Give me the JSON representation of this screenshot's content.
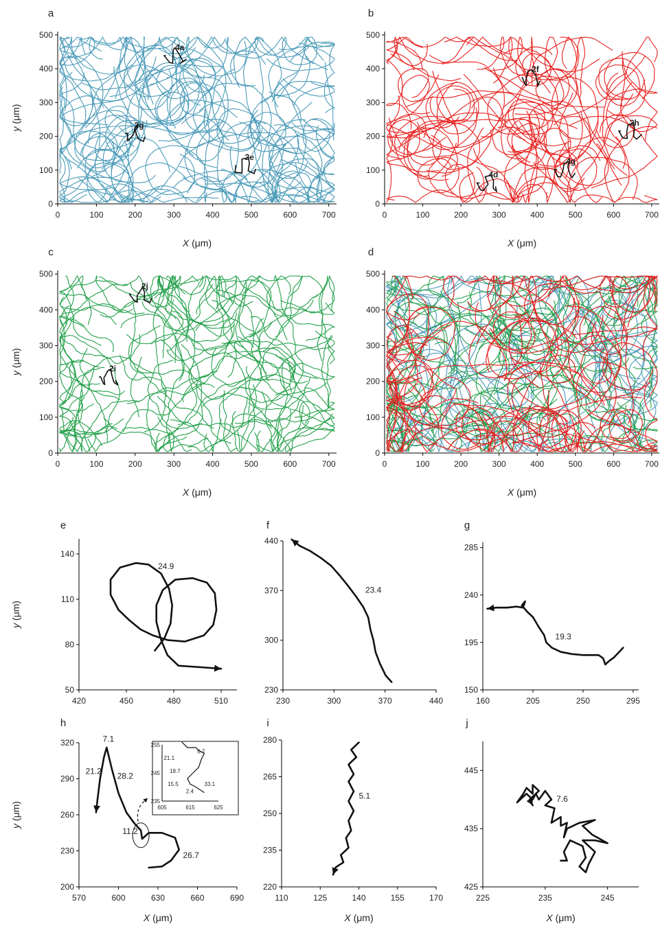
{
  "chart_data": [
    {
      "id": "a",
      "type": "line",
      "panel_label": "a",
      "xlim": [
        0,
        720
      ],
      "ylim": [
        0,
        510
      ],
      "xticks": [
        0,
        100,
        200,
        300,
        400,
        500,
        600,
        700
      ],
      "yticks": [
        0,
        100,
        200,
        300,
        400,
        500
      ],
      "xlabel": "X (μm)",
      "ylabel": "y (μm)",
      "color": "#4a9ab8",
      "highlight_color": "#111111",
      "tracks_note": "dense cell migration trajectories (blue)",
      "annotations": [
        {
          "text": "4a",
          "x": 315,
          "y": 455
        },
        {
          "text": "2g",
          "x": 210,
          "y": 225
        },
        {
          "text": "2e",
          "x": 495,
          "y": 130
        }
      ]
    },
    {
      "id": "b",
      "type": "line",
      "panel_label": "b",
      "xlim": [
        0,
        720
      ],
      "ylim": [
        0,
        510
      ],
      "xticks": [
        0,
        100,
        200,
        300,
        400,
        500,
        600,
        700
      ],
      "yticks": [
        0,
        100,
        200,
        300,
        400,
        500
      ],
      "xlabel": "X (μm)",
      "ylabel": "",
      "color": "#e8201e",
      "highlight_color": "#111111",
      "tracks_note": "cell migration trajectories (red)",
      "annotations": [
        {
          "text": "2f",
          "x": 395,
          "y": 390
        },
        {
          "text": "2h",
          "x": 655,
          "y": 232
        },
        {
          "text": "4d",
          "x": 285,
          "y": 78
        },
        {
          "text": "4g",
          "x": 488,
          "y": 118
        }
      ]
    },
    {
      "id": "c",
      "type": "line",
      "panel_label": "c",
      "xlim": [
        0,
        720
      ],
      "ylim": [
        0,
        510
      ],
      "xticks": [
        0,
        100,
        200,
        300,
        400,
        500,
        600,
        700
      ],
      "yticks": [
        0,
        100,
        200,
        300,
        400,
        500
      ],
      "xlabel": "X (μm)",
      "ylabel": "y (μm)",
      "color": "#23a04a",
      "highlight_color": "#111111",
      "tracks_note": "cell migration trajectories (green)",
      "annotations": [
        {
          "text": "2j",
          "x": 225,
          "y": 458
        },
        {
          "text": "2i",
          "x": 142,
          "y": 228
        }
      ]
    },
    {
      "id": "d",
      "type": "line",
      "panel_label": "d",
      "xlim": [
        0,
        720
      ],
      "ylim": [
        0,
        510
      ],
      "xticks": [
        0,
        100,
        200,
        300,
        400,
        500,
        600,
        700
      ],
      "yticks": [
        0,
        100,
        200,
        300,
        400,
        500
      ],
      "xlabel": "X (μm)",
      "ylabel": "",
      "colors": [
        "#4a9ab8",
        "#23a04a",
        "#e8201e"
      ],
      "tracks_note": "overlay of a, b, c",
      "annotations": []
    },
    {
      "id": "e",
      "type": "line",
      "panel_label": "e",
      "xlim": [
        420,
        520
      ],
      "ylim": [
        50,
        150
      ],
      "xticks": [
        420,
        450,
        480,
        510
      ],
      "yticks": [
        50,
        80,
        110,
        140
      ],
      "xlabel": "",
      "ylabel": "y (μm)",
      "label": "24.9",
      "label_pos": [
        470,
        130
      ],
      "path": [
        [
          468,
          76
        ],
        [
          474,
          84
        ],
        [
          478,
          94
        ],
        [
          479,
          106
        ],
        [
          477,
          117
        ],
        [
          472,
          127
        ],
        [
          464,
          133
        ],
        [
          456,
          134
        ],
        [
          446,
          131
        ],
        [
          440,
          123
        ],
        [
          440,
          113
        ],
        [
          445,
          103
        ],
        [
          452,
          96
        ],
        [
          459,
          90
        ],
        [
          467,
          86
        ],
        [
          476,
          83
        ],
        [
          487,
          82
        ],
        [
          499,
          86
        ],
        [
          505,
          93
        ],
        [
          507,
          103
        ],
        [
          506,
          114
        ],
        [
          501,
          121
        ],
        [
          492,
          124
        ],
        [
          481,
          123
        ],
        [
          473,
          116
        ],
        [
          469,
          106
        ],
        [
          469,
          95
        ],
        [
          472,
          83
        ],
        [
          476,
          73
        ],
        [
          483,
          66
        ],
        [
          497,
          65
        ],
        [
          510,
          64
        ]
      ],
      "arrow": true
    },
    {
      "id": "f",
      "type": "line",
      "panel_label": "f",
      "xlim": [
        230,
        440
      ],
      "ylim": [
        230,
        440
      ],
      "xticks": [
        230,
        300,
        370,
        440
      ],
      "yticks": [
        230,
        300,
        370,
        440
      ],
      "xlabel": "",
      "ylabel": "",
      "label": "23.4",
      "label_pos": [
        343,
        367
      ],
      "path": [
        [
          379,
          241
        ],
        [
          371,
          250
        ],
        [
          363,
          267
        ],
        [
          357,
          283
        ],
        [
          354,
          300
        ],
        [
          350,
          315
        ],
        [
          347,
          332
        ],
        [
          340,
          347
        ],
        [
          330,
          362
        ],
        [
          319,
          377
        ],
        [
          308,
          391
        ],
        [
          296,
          405
        ],
        [
          282,
          416
        ],
        [
          267,
          426
        ],
        [
          253,
          433
        ],
        [
          242,
          442
        ]
      ],
      "arrow": true
    },
    {
      "id": "g",
      "type": "line",
      "panel_label": "g",
      "xlim": [
        160,
        300
      ],
      "ylim": [
        150,
        290
      ],
      "xticks": [
        160,
        205,
        250,
        295
      ],
      "yticks": [
        150,
        195,
        240,
        285
      ],
      "xlabel": "",
      "ylabel": "",
      "label": "19.3",
      "label_pos": [
        225,
        198
      ],
      "path": [
        [
          286,
          190
        ],
        [
          278,
          181
        ],
        [
          273,
          177
        ],
        [
          270,
          174
        ],
        [
          268,
          180
        ],
        [
          264,
          183
        ],
        [
          258,
          183
        ],
        [
          250,
          183
        ],
        [
          240,
          184
        ],
        [
          230,
          186
        ],
        [
          222,
          190
        ],
        [
          217,
          195
        ],
        [
          215,
          202
        ],
        [
          210,
          210
        ],
        [
          205,
          219
        ],
        [
          200,
          224
        ],
        [
          195,
          230
        ],
        [
          198,
          234
        ],
        [
          196,
          228
        ],
        [
          190,
          229
        ],
        [
          182,
          228
        ],
        [
          172,
          228
        ],
        [
          164,
          227
        ]
      ],
      "arrow": true
    },
    {
      "id": "h",
      "type": "line",
      "panel_label": "h",
      "xlim": [
        570,
        690
      ],
      "ylim": [
        200,
        320
      ],
      "xticks": [
        570,
        600,
        630,
        660,
        690
      ],
      "yticks": [
        200,
        230,
        260,
        290,
        320
      ],
      "xlabel": "X (μm)",
      "ylabel": "y (μm)",
      "labels": [
        {
          "text": "7.1",
          "x": 588,
          "y": 321
        },
        {
          "text": "21.2",
          "x": 575,
          "y": 294
        },
        {
          "text": "28.2",
          "x": 599,
          "y": 290
        },
        {
          "text": "11.2",
          "x": 603,
          "y": 244
        },
        {
          "text": "26.7",
          "x": 649,
          "y": 224
        }
      ],
      "path": [
        [
          623,
          216
        ],
        [
          633,
          217
        ],
        [
          640,
          222
        ],
        [
          646,
          231
        ],
        [
          643,
          241
        ],
        [
          633,
          245
        ],
        [
          623,
          245
        ],
        [
          618,
          240
        ],
        [
          617,
          247
        ],
        [
          612,
          253
        ],
        [
          606,
          262
        ],
        [
          600,
          278
        ],
        [
          595,
          298
        ],
        [
          591,
          316
        ],
        [
          589,
          308
        ],
        [
          586,
          290
        ],
        [
          584,
          272
        ],
        [
          583,
          262
        ]
      ],
      "arrow": true,
      "inset": {
        "xlim": [
          605,
          625
        ],
        "ylim": [
          235,
          255
        ],
        "xticks": [
          605,
          615,
          625
        ],
        "yticks": [
          235,
          245,
          255
        ],
        "labels": [
          {
            "text": "6.7",
            "x": 617.5,
            "y": 252
          },
          {
            "text": "21.1",
            "x": 605.6,
            "y": 249.6
          },
          {
            "text": "18.7",
            "x": 607.7,
            "y": 245
          },
          {
            "text": "15.5",
            "x": 607,
            "y": 240.4
          },
          {
            "text": "2.4",
            "x": 613.5,
            "y": 237.8
          },
          {
            "text": "33.1",
            "x": 620,
            "y": 240.4
          }
        ]
      }
    },
    {
      "id": "i",
      "type": "line",
      "panel_label": "i",
      "xlim": [
        110,
        170
      ],
      "ylim": [
        220,
        280
      ],
      "xticks": [
        110,
        125,
        140,
        155,
        170
      ],
      "yticks": [
        220,
        235,
        250,
        265,
        280
      ],
      "xlabel": "X (μm)",
      "ylabel": "",
      "label": "5.1",
      "label_pos": [
        140,
        256
      ],
      "path": [
        [
          140,
          279
        ],
        [
          137,
          276
        ],
        [
          139,
          273
        ],
        [
          136,
          270
        ],
        [
          138,
          266
        ],
        [
          136,
          263
        ],
        [
          138,
          259
        ],
        [
          136,
          255
        ],
        [
          138,
          251
        ],
        [
          136,
          247
        ],
        [
          137,
          243
        ],
        [
          135,
          240
        ],
        [
          136,
          236
        ],
        [
          133,
          233
        ],
        [
          134,
          230
        ],
        [
          131,
          228
        ],
        [
          130,
          225
        ]
      ],
      "arrow": true
    },
    {
      "id": "j",
      "type": "line",
      "panel_label": "j",
      "xlim": [
        225,
        250
      ],
      "ylim": [
        425,
        450
      ],
      "xticks": [
        225,
        235,
        245
      ],
      "yticks": [
        425,
        435,
        445
      ],
      "xlabel": "X (μm)",
      "ylabel": "",
      "label": "7.6",
      "label_pos": [
        236.8,
        439.6
      ],
      "path": [
        [
          237.5,
          429.5
        ],
        [
          238.5,
          429.5
        ],
        [
          238,
          431
        ],
        [
          239,
          433
        ],
        [
          241,
          432
        ],
        [
          241.5,
          430
        ],
        [
          240.5,
          428.5
        ],
        [
          241.5,
          427.5
        ],
        [
          242,
          429
        ],
        [
          243,
          431
        ],
        [
          241,
          433
        ],
        [
          243,
          433
        ],
        [
          245,
          432.5
        ],
        [
          242.5,
          434
        ],
        [
          241,
          435.5
        ],
        [
          243,
          436.5
        ],
        [
          240.5,
          436
        ],
        [
          238.5,
          435
        ],
        [
          238,
          433.5
        ],
        [
          238.5,
          436
        ],
        [
          237.5,
          435.5
        ],
        [
          237.5,
          437
        ],
        [
          236,
          436
        ],
        [
          236.5,
          438.5
        ],
        [
          235,
          439
        ],
        [
          236,
          440
        ],
        [
          235,
          441.5
        ],
        [
          234,
          440
        ],
        [
          233.5,
          441
        ],
        [
          233,
          440
        ],
        [
          232,
          441
        ],
        [
          230.5,
          439.5
        ],
        [
          231.5,
          441
        ],
        [
          232,
          442
        ],
        [
          233,
          441
        ],
        [
          233,
          442.5
        ],
        [
          234,
          441.5
        ],
        [
          232.5,
          440
        ],
        [
          233,
          439
        ]
      ],
      "arrow": true
    }
  ]
}
